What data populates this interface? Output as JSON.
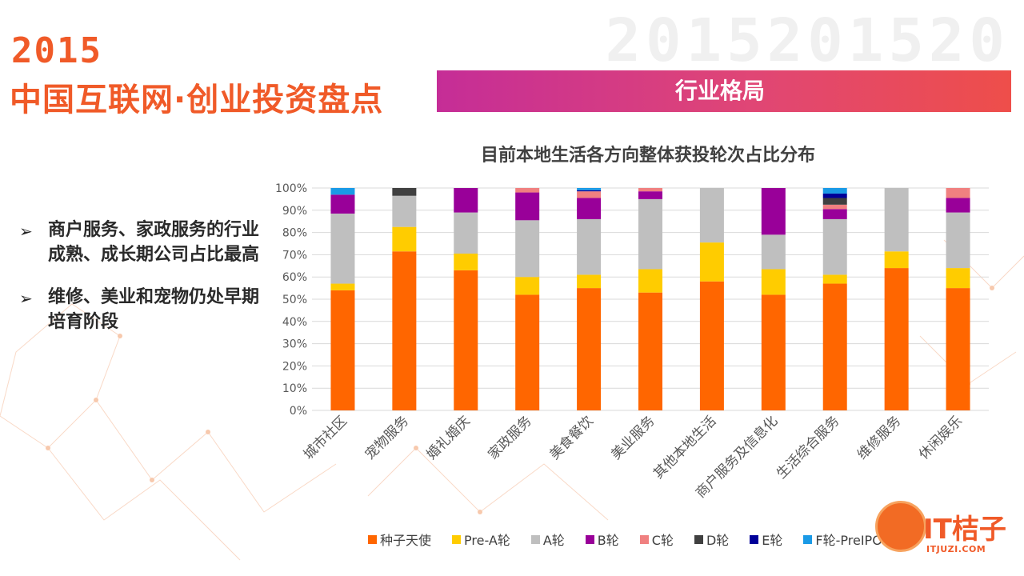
{
  "watermark": "2015201520",
  "header": {
    "year": "2015",
    "title": "中国互联网·创业投资盘点",
    "banner": "行业格局"
  },
  "bullets": [
    {
      "arrow": "➢",
      "text": "商户服务、家政服务的行业成熟、成长期公司占比最高"
    },
    {
      "arrow": "➢",
      "text": "维修、美业和宠物仍处早期培育阶段"
    }
  ],
  "logo": {
    "name": "IT桔子",
    "url": "ITJUZI.COM"
  },
  "colors": {
    "accent": "#f05a28",
    "banner_start": "#c52d97",
    "banner_end": "#ee4e4a"
  },
  "chart_data": {
    "type": "bar",
    "stacked": true,
    "title": "目前本地生活各方向整体获投轮次占比分布",
    "xlabel": "",
    "ylabel": "",
    "ylim": [
      0,
      100
    ],
    "y_ticks": [
      "0%",
      "10%",
      "20%",
      "30%",
      "40%",
      "50%",
      "60%",
      "70%",
      "80%",
      "90%",
      "100%"
    ],
    "legend_position": "bottom",
    "categories": [
      "城市社区",
      "宠物服务",
      "婚礼婚庆",
      "家政服务",
      "美食餐饮",
      "美业服务",
      "其他本地生活",
      "商户服务及信息化",
      "生活综合服务",
      "维修服务",
      "休闲娱乐"
    ],
    "series": [
      {
        "name": "种子天使",
        "color": "#ff6600",
        "values": [
          54,
          71.5,
          63,
          52,
          55,
          53,
          58,
          52,
          57,
          64,
          55
        ]
      },
      {
        "name": "Pre-A轮",
        "color": "#ffcc00",
        "values": [
          3,
          11,
          7.5,
          8,
          6,
          10.5,
          17.5,
          11.5,
          4,
          7.5,
          9
        ]
      },
      {
        "name": "A轮",
        "color": "#bfbfbf",
        "values": [
          31.5,
          14,
          18.5,
          25.5,
          25,
          31.5,
          24.5,
          15.5,
          25,
          28.5,
          25
        ]
      },
      {
        "name": "B轮",
        "color": "#990099",
        "values": [
          8.5,
          0,
          11,
          12.5,
          9.5,
          3.5,
          0,
          21,
          4.5,
          0,
          6.5
        ]
      },
      {
        "name": "C轮",
        "color": "#f08080",
        "values": [
          0,
          0,
          0,
          2,
          3,
          1.5,
          0,
          0,
          2,
          0,
          4.5
        ]
      },
      {
        "name": "D轮",
        "color": "#404040",
        "values": [
          0,
          3.5,
          0,
          0,
          0,
          0,
          0,
          0,
          3,
          0,
          0
        ]
      },
      {
        "name": "E轮",
        "color": "#000099",
        "values": [
          0,
          0,
          0,
          0,
          0.5,
          0,
          0,
          0,
          2,
          0,
          0
        ]
      },
      {
        "name": "F轮-PreIPO",
        "color": "#1a9ae6",
        "values": [
          3,
          0,
          0,
          0,
          1,
          0,
          0,
          0,
          2.5,
          0,
          0
        ]
      }
    ]
  }
}
